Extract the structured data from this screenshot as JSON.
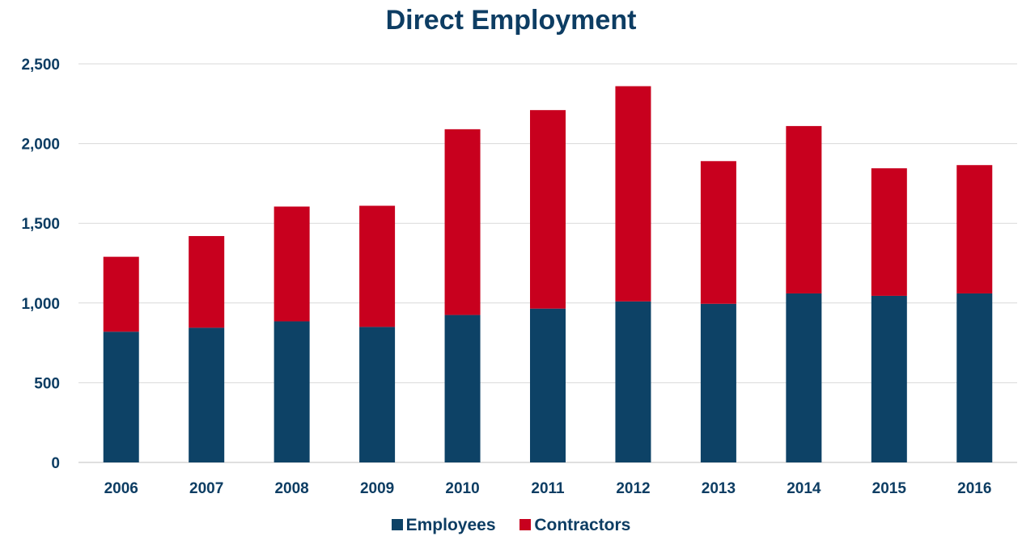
{
  "chart_data": {
    "type": "bar",
    "stacked": true,
    "title": "Direct Employment",
    "categories": [
      "2006",
      "2007",
      "2008",
      "2009",
      "2010",
      "2011",
      "2012",
      "2013",
      "2014",
      "2015",
      "2016"
    ],
    "series": [
      {
        "name": "Employees",
        "color": "#0d4266",
        "values": [
          820,
          845,
          885,
          850,
          925,
          965,
          1010,
          995,
          1060,
          1045,
          1060
        ]
      },
      {
        "name": "Contractors",
        "color": "#c8001e",
        "values": [
          470,
          575,
          720,
          760,
          1165,
          1245,
          1350,
          895,
          1050,
          800,
          805
        ]
      }
    ],
    "ylim": [
      0,
      2500
    ],
    "yticks": [
      0,
      500,
      1000,
      1500,
      2000,
      2500
    ],
    "ytick_labels": [
      "0",
      "500",
      "1,000",
      "1,500",
      "2,000",
      "2,500"
    ],
    "grid": true,
    "legend_position": "bottom",
    "xlabel": "",
    "ylabel": ""
  }
}
